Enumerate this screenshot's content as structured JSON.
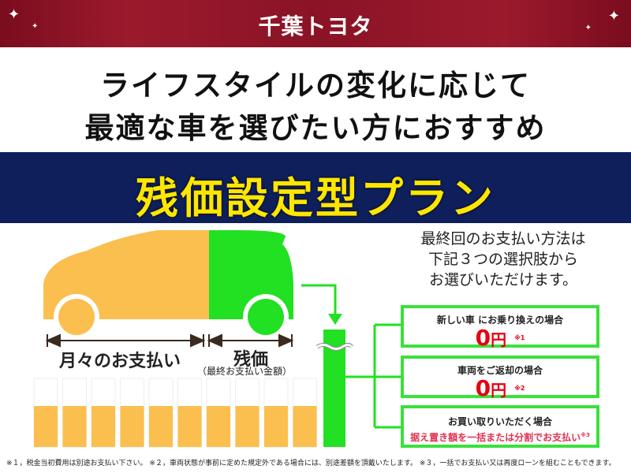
{
  "header": {
    "logo": "千葉トヨタ",
    "brand_color": "#8a1326"
  },
  "headline": {
    "line1": "ライフスタイルの変化に応じて",
    "line2": "最適な車を選びたい方におすすめ"
  },
  "plan_title": "残価設定型プラン",
  "diagram": {
    "monthly_label": "月々のお支払い",
    "residual_label": "残価",
    "residual_sub": "（最終お支払い金額）",
    "installments": 10,
    "colors": {
      "monthly": "#fbbf4f",
      "residual": "#22e022"
    }
  },
  "options": {
    "intro": [
      "最終回のお支払い方法は",
      "下記３つの選択肢から",
      "お選びいただけます。"
    ],
    "items": [
      {
        "title": "新しい車 にお乗り換えの場合",
        "amount": "0",
        "unit": "円",
        "note": "※1"
      },
      {
        "title": "車両をご返却の場合",
        "amount": "0",
        "unit": "円",
        "note": "※2"
      },
      {
        "title": "お買い取りいただく場合",
        "payment": "据え置き額を一括または分割でお支払い",
        "note": "※3"
      }
    ]
  },
  "footnote": "※１，税金当初費用は別途お支払い下さい。 ※２，車両状態が事前に定めた規定外である場合には、別途差額を頂戴いたします。 ※３，一括でお支払い又は再度ローンを組むこともできます。"
}
